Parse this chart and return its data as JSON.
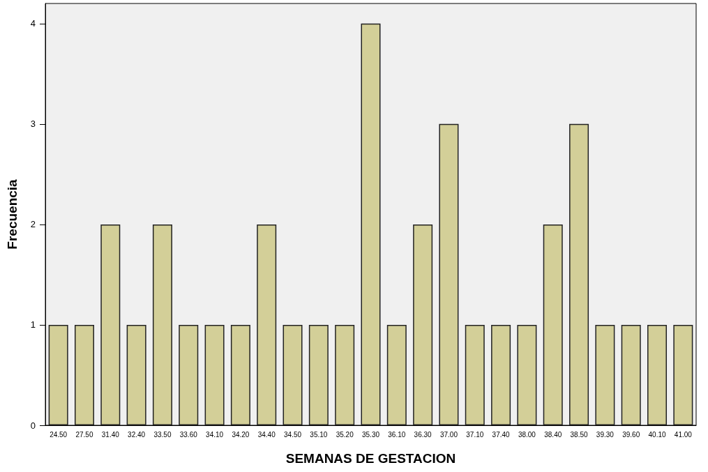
{
  "chart_data": {
    "type": "bar",
    "xlabel": "SEMANAS DE GESTACION",
    "ylabel": "Frecuencia",
    "categories": [
      "24.50",
      "27.50",
      "31.40",
      "32.40",
      "33.50",
      "33.60",
      "34.10",
      "34.20",
      "34.40",
      "34.50",
      "35.10",
      "35.20",
      "35.30",
      "36.10",
      "36.30",
      "37.00",
      "37.10",
      "37.40",
      "38.00",
      "38.40",
      "38.50",
      "39.30",
      "39.60",
      "40.10",
      "41.00"
    ],
    "values": [
      1,
      1,
      2,
      1,
      2,
      1,
      1,
      1,
      2,
      1,
      1,
      1,
      4,
      1,
      2,
      3,
      1,
      1,
      1,
      2,
      3,
      1,
      1,
      1,
      1
    ],
    "color": "#d3cf98",
    "ylim": [
      0,
      4.2
    ],
    "yticks": [
      0,
      1,
      2,
      3,
      4
    ],
    "grid": false
  }
}
